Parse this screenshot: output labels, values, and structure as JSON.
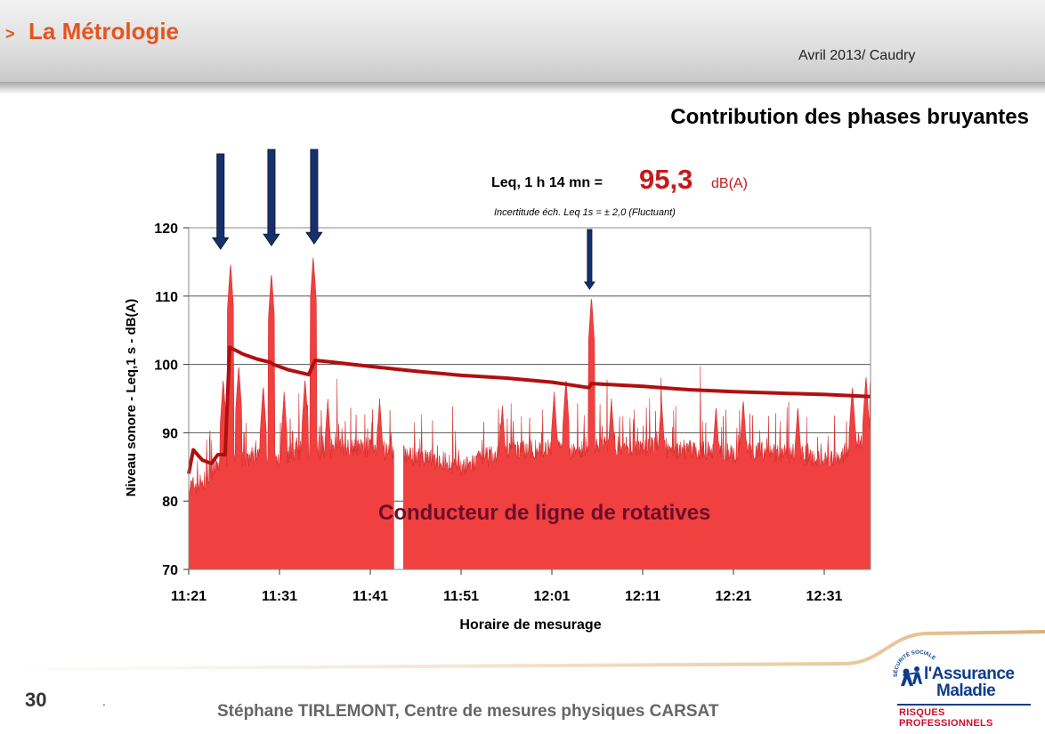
{
  "header": {
    "chevron": ">",
    "section_title": "La Métrologie",
    "date_place": "Avril 2013/ Caudry"
  },
  "slide": {
    "subtitle": "Contribution des phases bruyantes"
  },
  "chart_data": {
    "type": "area",
    "leq_prefix": "Leq, 1 h 14 mn =",
    "leq_value": "95,3",
    "leq_unit": "dB(A)",
    "uncertainty": "Incertitude éch. Leq 1s = ± 2,0 (Fluctuant)",
    "annotation": "Conducteur de ligne de rotatives",
    "xlabel": "Horaire de mesurage",
    "ylabel": "Niveau sonore - Leq,1 s - dB(A)",
    "x_ticks": [
      "11:21",
      "11:31",
      "11:41",
      "11:51",
      "12:01",
      "12:11",
      "12:21",
      "12:31"
    ],
    "y_ticks": [
      70,
      80,
      90,
      100,
      110,
      120
    ],
    "ylim": [
      70,
      120
    ],
    "x_range_minutes": [
      0,
      75
    ],
    "grid": "horizontal",
    "colors": {
      "instant_fill": "#f04040",
      "instant_peak": "#d02828",
      "cumulative_line": "#b01010",
      "arrow": "#17306a",
      "leq_value": "#c41a1a",
      "annotation": "#6e0d28"
    },
    "series": [
      {
        "name": "",
        "style": "area",
        "baseline_profile": [
          [
            0,
            82
          ],
          [
            2,
            83
          ],
          [
            3,
            85
          ],
          [
            4,
            86
          ],
          [
            6,
            86
          ],
          [
            7.5,
            87
          ],
          [
            9,
            86
          ],
          [
            11,
            87
          ],
          [
            13,
            87.5
          ],
          [
            15,
            87.5
          ],
          [
            17,
            88
          ],
          [
            19,
            88
          ],
          [
            21,
            87.5
          ],
          [
            23,
            87
          ],
          [
            25,
            86.5
          ],
          [
            27,
            86
          ],
          [
            29,
            85.5
          ],
          [
            29.5,
            85
          ],
          [
            30.5,
            85
          ],
          [
            32,
            86
          ],
          [
            34,
            87
          ],
          [
            36,
            87.5
          ],
          [
            38,
            87.5
          ],
          [
            40,
            87.5
          ],
          [
            42,
            87.5
          ],
          [
            44,
            88
          ],
          [
            46,
            88
          ],
          [
            48,
            88
          ],
          [
            50,
            88
          ],
          [
            52,
            88
          ],
          [
            54,
            87.5
          ],
          [
            56,
            87.5
          ],
          [
            58,
            87.5
          ],
          [
            60,
            87
          ],
          [
            62,
            87.5
          ],
          [
            64,
            87
          ],
          [
            66,
            87
          ],
          [
            68,
            86.5
          ],
          [
            70,
            86
          ],
          [
            72,
            87
          ],
          [
            73,
            88
          ],
          [
            74,
            89
          ],
          [
            75,
            90
          ]
        ],
        "gap_minutes": [
          22.6,
          23.6
        ],
        "peaks": [
          [
            4.6,
            115
          ],
          [
            9.1,
            113.5
          ],
          [
            13.7,
            116
          ],
          [
            44.3,
            110
          ],
          [
            3.8,
            98
          ],
          [
            5.5,
            100
          ],
          [
            8.2,
            97
          ],
          [
            10.5,
            96
          ],
          [
            12.8,
            98
          ],
          [
            15.3,
            95
          ],
          [
            21,
            95
          ],
          [
            34.5,
            94
          ],
          [
            40.2,
            96
          ],
          [
            41.5,
            98
          ],
          [
            46.5,
            95
          ],
          [
            52,
            95
          ],
          [
            58,
            94
          ],
          [
            61,
            95
          ],
          [
            67,
            94
          ],
          [
            73,
            97
          ],
          [
            74.5,
            98.5
          ]
        ]
      },
      {
        "name": "",
        "style": "line",
        "points": [
          [
            0,
            84
          ],
          [
            0.5,
            87.5
          ],
          [
            1.5,
            86
          ],
          [
            2.5,
            85.5
          ],
          [
            3.2,
            86.8
          ],
          [
            4,
            86.8
          ],
          [
            4.5,
            102.5
          ],
          [
            6,
            101.5
          ],
          [
            7.5,
            100.8
          ],
          [
            9,
            100.3
          ],
          [
            9.3,
            100
          ],
          [
            11,
            99.2
          ],
          [
            13.2,
            98.5
          ],
          [
            13.9,
            100.6
          ],
          [
            16,
            100.3
          ],
          [
            20,
            99.7
          ],
          [
            25,
            99
          ],
          [
            30,
            98.4
          ],
          [
            35,
            98
          ],
          [
            40,
            97.4
          ],
          [
            44,
            96.6
          ],
          [
            44.3,
            97.2
          ],
          [
            50,
            96.8
          ],
          [
            55,
            96.3
          ],
          [
            60,
            96
          ],
          [
            65,
            95.8
          ],
          [
            70,
            95.6
          ],
          [
            75,
            95.3
          ]
        ]
      }
    ],
    "arrow_markers_minutes": [
      3.5,
      9.1,
      13.8,
      44.1
    ]
  },
  "footer": {
    "page_number": "30",
    "dot": ".",
    "author": "Stéphane TIRLEMONT, Centre de mesures physiques CARSAT"
  },
  "logo": {
    "emblem_text": "SÉCURITÉ SOCIALE",
    "line1": "l'Assurance",
    "line2": "Maladie",
    "line3": "RISQUES PROFESSIONNELS",
    "color": "#0d3c8c",
    "accent": "#c8102e"
  }
}
